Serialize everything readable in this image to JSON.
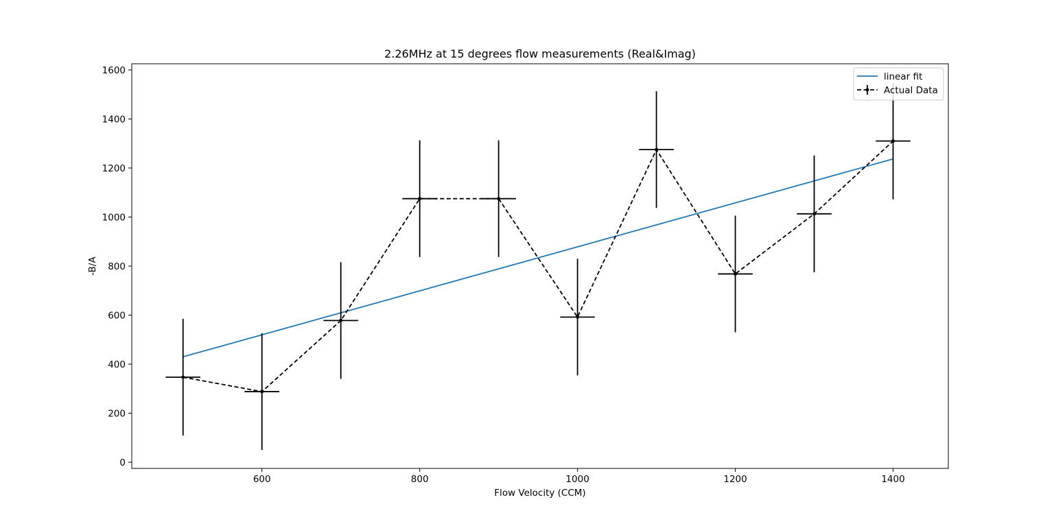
{
  "chart_data": {
    "type": "line",
    "title": "2.26MHz at 15 degrees flow measurements (Real&Imag)",
    "xlabel": "Flow Velocity (CCM)",
    "ylabel": "-B/A",
    "xlim": [
      435,
      1470
    ],
    "ylim": [
      -25,
      1625
    ],
    "xticks": [
      600,
      800,
      1000,
      1200,
      1400
    ],
    "yticks": [
      0,
      200,
      400,
      600,
      800,
      1000,
      1200,
      1400,
      1600
    ],
    "legend_position": "top-right",
    "grid": false,
    "series": [
      {
        "name": "linear fit",
        "style": "solid",
        "color": "#1f77b4",
        "x": [
          500,
          1400
        ],
        "y": [
          430,
          1237
        ]
      },
      {
        "name": "Actual Data",
        "style": "dashed",
        "color": "#000000",
        "marker": "dot",
        "x": [
          500,
          600,
          700,
          800,
          900,
          1000,
          1100,
          1200,
          1300,
          1400
        ],
        "y": [
          347,
          288,
          578,
          1075,
          1075,
          592,
          1275,
          768,
          1013,
          1310
        ],
        "x_error": [
          22,
          22,
          22,
          22,
          22,
          22,
          22,
          22,
          22,
          22
        ],
        "y_error": [
          238,
          238,
          238,
          238,
          238,
          238,
          238,
          238,
          238,
          238
        ]
      }
    ]
  }
}
